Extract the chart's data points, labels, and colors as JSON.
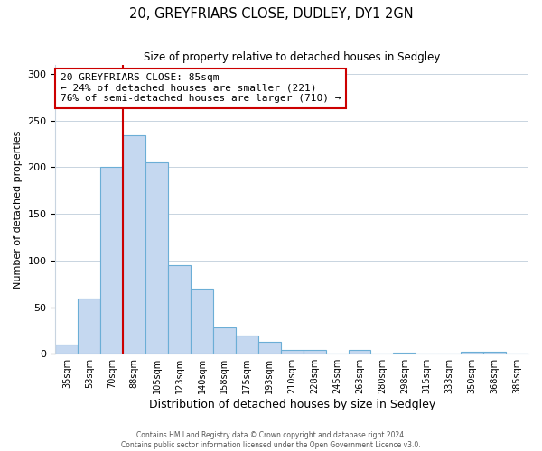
{
  "title": "20, GREYFRIARS CLOSE, DUDLEY, DY1 2GN",
  "subtitle": "Size of property relative to detached houses in Sedgley",
  "xlabel": "Distribution of detached houses by size in Sedgley",
  "ylabel": "Number of detached properties",
  "bar_labels": [
    "35sqm",
    "53sqm",
    "70sqm",
    "88sqm",
    "105sqm",
    "123sqm",
    "140sqm",
    "158sqm",
    "175sqm",
    "193sqm",
    "210sqm",
    "228sqm",
    "245sqm",
    "263sqm",
    "280sqm",
    "298sqm",
    "315sqm",
    "333sqm",
    "350sqm",
    "368sqm",
    "385sqm"
  ],
  "bar_values": [
    10,
    59,
    200,
    234,
    205,
    95,
    70,
    28,
    20,
    13,
    4,
    4,
    0,
    4,
    0,
    1,
    0,
    0,
    2,
    2,
    0
  ],
  "bar_color": "#c5d8f0",
  "bar_edge_color": "#6baed6",
  "ylim": [
    0,
    310
  ],
  "yticks": [
    0,
    50,
    100,
    150,
    200,
    250,
    300
  ],
  "vline_color": "#cc0000",
  "vline_index": 3,
  "annotation_text": "20 GREYFRIARS CLOSE: 85sqm\n← 24% of detached houses are smaller (221)\n76% of semi-detached houses are larger (710) →",
  "annotation_box_color": "#ffffff",
  "annotation_box_edge": "#cc0000",
  "footer_line1": "Contains HM Land Registry data © Crown copyright and database right 2024.",
  "footer_line2": "Contains public sector information licensed under the Open Government Licence v3.0.",
  "background_color": "#ffffff",
  "grid_color": "#c8d4e0"
}
